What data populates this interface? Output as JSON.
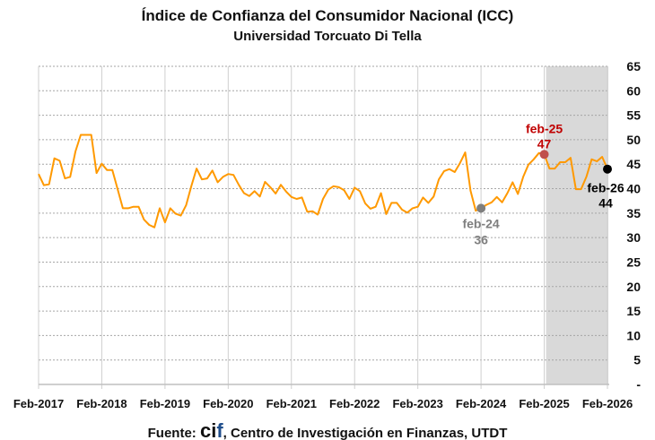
{
  "chart_data": {
    "type": "line",
    "title": "Índice de Confianza del Consumidor Nacional (ICC)",
    "subtitle": "Universidad Torcuato Di Tella",
    "x_start": "Feb-2017",
    "x_end": "Feb-2026",
    "frequency": "monthly",
    "x_tick_labels": [
      "Feb-2017",
      "Feb-2018",
      "Feb-2019",
      "Feb-2020",
      "Feb-2021",
      "Feb-2022",
      "Feb-2023",
      "Feb-2024",
      "Feb-2025",
      "Feb-2026"
    ],
    "y_tick_labels": [
      "-",
      "5",
      "10",
      "15",
      "20",
      "25",
      "30",
      "35",
      "40",
      "45",
      "50",
      "55",
      "60",
      "65"
    ],
    "ylim": [
      0,
      65
    ],
    "y_axis_side": "right",
    "grid": {
      "horizontal": "dotted",
      "vertical": "yearly"
    },
    "series_color": "#ff9900",
    "shaded_region": {
      "from": "Feb-2025",
      "to": "Feb-2026",
      "color": "#d9d9d9"
    },
    "values": [
      43.0,
      40.7,
      40.9,
      46.2,
      45.7,
      42.1,
      42.4,
      47.6,
      51.0,
      51.0,
      51.0,
      43.2,
      45.1,
      43.8,
      43.8,
      39.9,
      36.0,
      36.0,
      36.3,
      36.3,
      33.7,
      32.6,
      32.1,
      36.0,
      33.1,
      36.0,
      34.9,
      34.5,
      36.6,
      40.5,
      44.1,
      41.9,
      42.1,
      43.7,
      41.3,
      42.4,
      43.0,
      42.8,
      40.8,
      39.1,
      38.5,
      39.5,
      38.4,
      41.4,
      40.3,
      39.0,
      40.8,
      39.4,
      38.3,
      37.9,
      38.2,
      35.3,
      35.4,
      34.7,
      37.9,
      39.8,
      40.5,
      40.3,
      39.7,
      37.9,
      40.2,
      39.5,
      37.0,
      35.9,
      36.3,
      39.1,
      34.8,
      37.1,
      37.1,
      35.7,
      35.1,
      36.0,
      36.3,
      38.2,
      37.1,
      38.4,
      41.9,
      43.6,
      44.0,
      43.4,
      45.2,
      47.4,
      39.6,
      35.5,
      36.0,
      36.7,
      37.2,
      38.3,
      37.2,
      39.1,
      41.3,
      38.9,
      42.4,
      44.9,
      46.0,
      47.3,
      47.0,
      44.1,
      44.1,
      45.4,
      45.4,
      46.3,
      39.9,
      39.9,
      42.4,
      46.0,
      45.6,
      46.5,
      44.0
    ],
    "annotations": [
      {
        "index": 84,
        "label": "feb-24",
        "value_label": "36",
        "color": "#7f7f7f"
      },
      {
        "index": 96,
        "label": "feb-25",
        "value_label": "47",
        "color": "#c00000",
        "marker_color": "#c0504d"
      },
      {
        "index": 108,
        "label": "feb-26",
        "value_label": "44",
        "color": "#000000"
      }
    ]
  },
  "source": {
    "prefix": "Fuente:",
    "logo_c": "ci",
    "logo_f": "f",
    "suffix": ", Centro de Investigación en Finanzas, UTDT"
  }
}
